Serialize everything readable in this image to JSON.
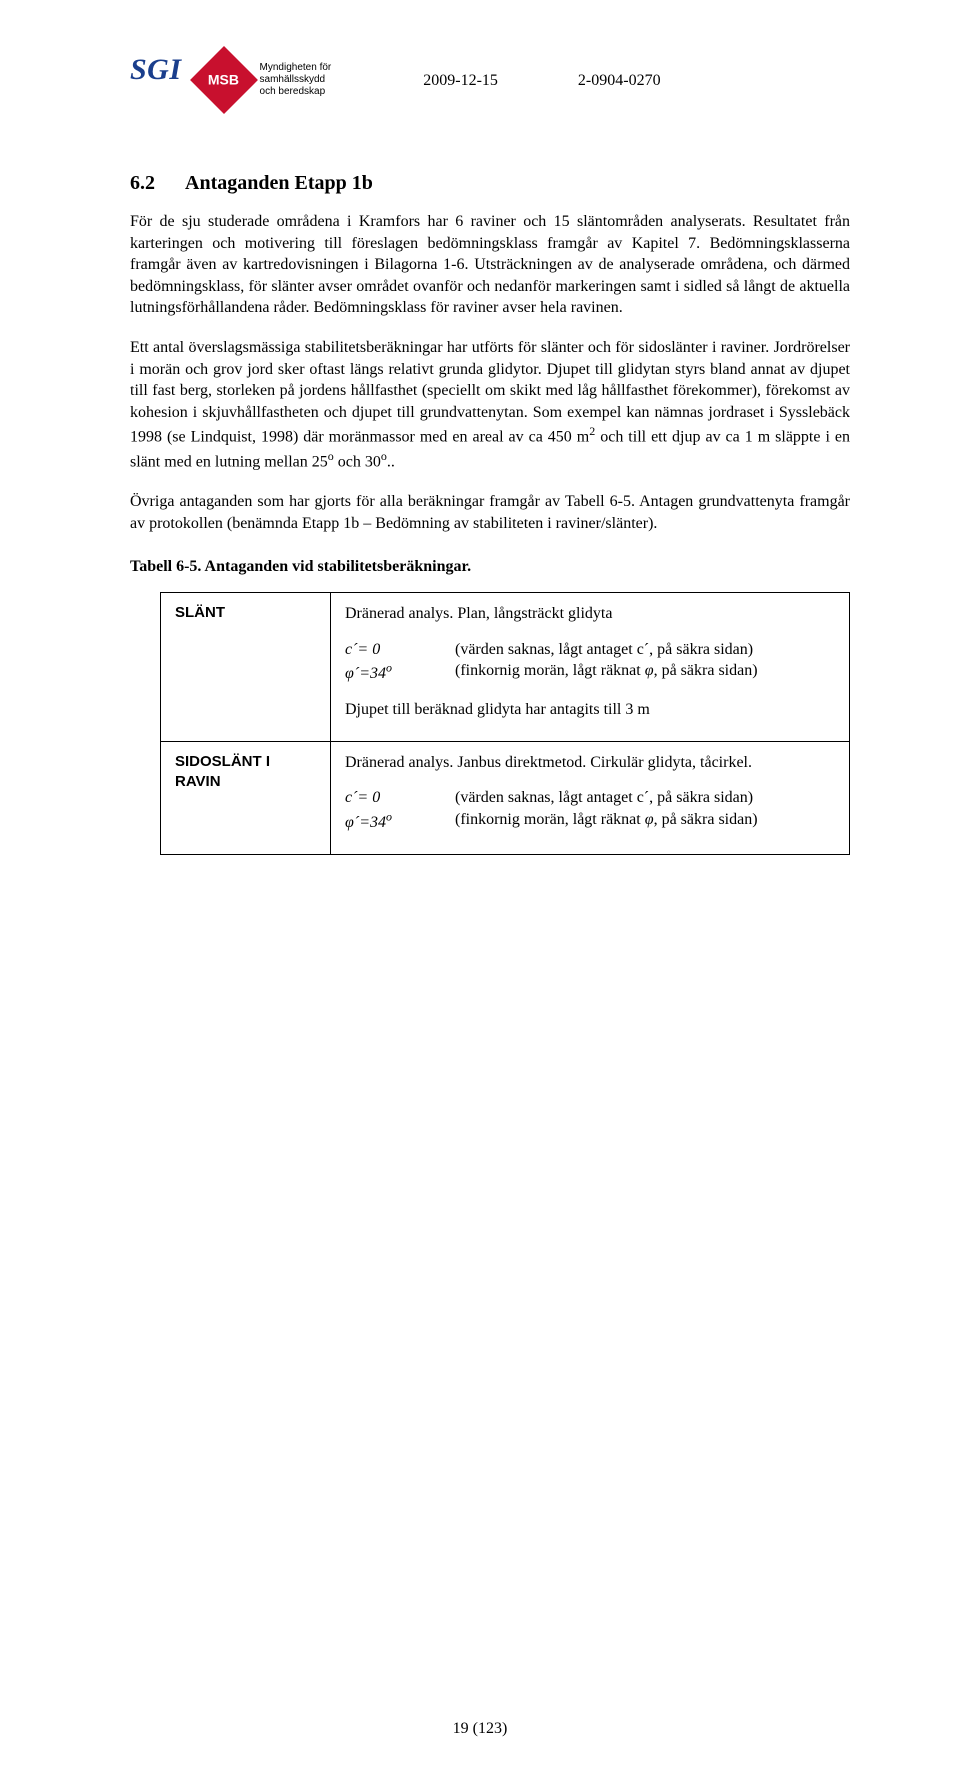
{
  "header": {
    "sgi": "SGI",
    "msb_initials": "MSB",
    "msb_line1": "Myndigheten för",
    "msb_line2": "samhällsskydd",
    "msb_line3": "och beredskap",
    "date": "2009-12-15",
    "docnum": "2-0904-0270"
  },
  "section": {
    "number": "6.2",
    "title": "Antaganden Etapp 1b"
  },
  "paragraphs": {
    "p1": "För de sju studerade områdena i Kramfors har 6 raviner och 15 släntområden analyserats. Resultatet från karteringen och motivering till föreslagen bedömningsklass framgår av Kapitel 7. Bedömningsklasserna framgår även av kartredovisningen i Bilagorna 1-6. Utsträckningen av de analyserade områdena, och därmed bedömningsklass, för slänter avser området ovanför och nedanför markeringen samt i sidled så långt de aktuella lutningsförhållandena råder. Bedömningsklass för raviner avser hela ravinen.",
    "p2": "Ett antal överslagsmässiga stabilitetsberäkningar har utförts för slänter och för sidoslänter i raviner. Jordrörelser i morän och grov jord sker oftast längs relativt grunda glidytor. Djupet till glidytan styrs bland annat av djupet till fast berg, storleken på jordens hållfasthet (speciellt om skikt med låg hållfasthet förekommer), förekomst av kohesion i skjuvhållfastheten och djupet till grundvattenytan. Som exempel kan nämnas jordraset i Sysslebäck 1998 (se Lindquist, 1998) där moränmassor med en areal av ca 450 m² och till ett djup av ca 1 m släppte i en slänt med en lutning mellan 25° och 30°..",
    "p3": "Övriga antaganden som har gjorts för alla beräkningar framgår av Tabell 6-5. Antagen grundvattenyta framgår av protokollen (benämnda Etapp 1b – Bedömning av stabiliteten i raviner/slänter)."
  },
  "table": {
    "caption": "Tabell 6-5. Antaganden vid stabilitetsberäkningar.",
    "rows": [
      {
        "label": "SLÄNT",
        "title": "Dränerad analys. Plan, långsträckt glidyta",
        "param1_left": "c´= 0",
        "param1_right": "(värden saknas, lågt antaget c´, på säkra sidan)",
        "param2_left": "φ´=34°",
        "param2_right": "(finkornig morän, lågt räknat φ, på säkra sidan)",
        "extra": "Djupet till beräknad glidyta har antagits till 3 m"
      },
      {
        "label": "SIDOSLÄNT I RAVIN",
        "title": "Dränerad analys. Janbus direktmetod. Cirkulär glidyta, tåcirkel.",
        "param1_left": "c´= 0",
        "param1_right": "(värden saknas, lågt antaget c´, på säkra sidan)",
        "param2_left": "φ´=34°",
        "param2_right": "(finkornig morän, lågt räknat φ, på säkra sidan)",
        "extra": ""
      }
    ]
  },
  "page_number": "19 (123)"
}
